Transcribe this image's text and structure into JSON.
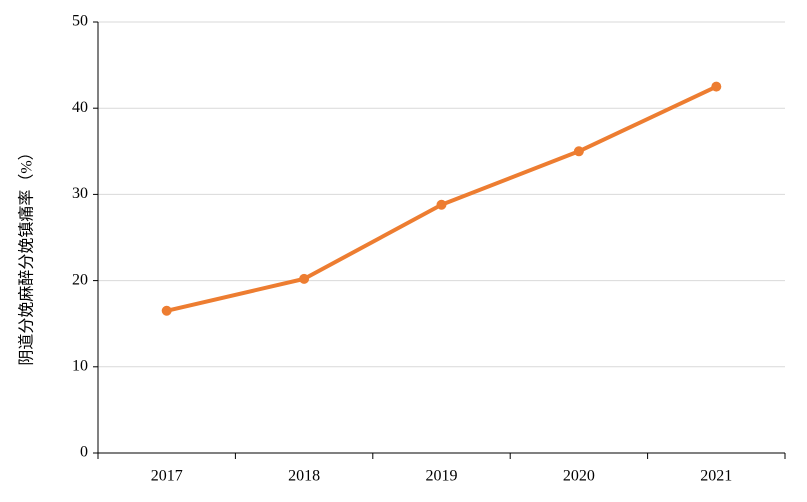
{
  "chart_data": {
    "type": "line",
    "y_label": "阴道分娩麻醉分娩镇痛率（%）",
    "categories": [
      "2017",
      "2018",
      "2019",
      "2020",
      "2021"
    ],
    "series": [
      {
        "name": "阴道分娩麻醉分娩镇痛率",
        "color": "#ed7d31",
        "values": [
          16.5,
          20.2,
          28.8,
          35.0,
          42.5
        ]
      }
    ],
    "ylim": [
      0,
      50
    ],
    "yticks": [
      0,
      10,
      20,
      30,
      40,
      50
    ],
    "grid": true
  }
}
